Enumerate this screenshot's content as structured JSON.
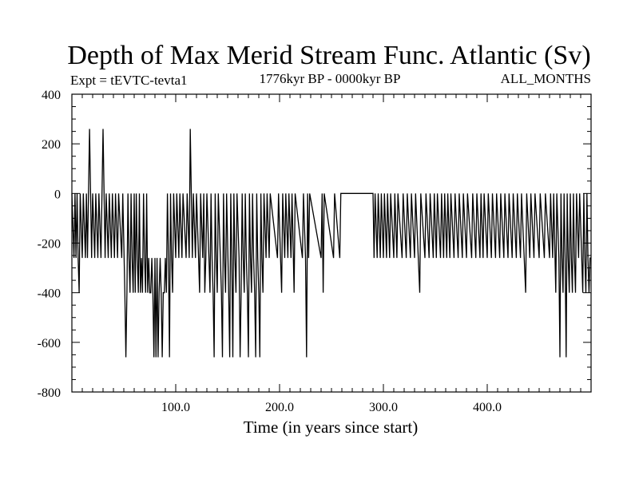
{
  "chart_data": {
    "type": "line",
    "title": "Depth of Max Merid Stream Func. Atlantic (Sv)",
    "experiment": "Expt = tEVTC-tevta1",
    "period": "1776kyr BP - 0000kyr BP",
    "months": "ALL_MONTHS",
    "xlabel": "Time (in years since start)",
    "ylabel": "",
    "xlim": [
      0,
      500
    ],
    "ylim": [
      -800,
      400
    ],
    "x_major_ticks": [
      100,
      200,
      300,
      400
    ],
    "x_tick_labels": [
      "100.0",
      "200.0",
      "300.0",
      "400.0"
    ],
    "y_major_ticks": [
      -800,
      -600,
      -400,
      -200,
      0,
      200,
      400
    ],
    "y_tick_labels": [
      "-800",
      "-600",
      "-400",
      "-200",
      "0",
      "200",
      "400"
    ],
    "grid": false,
    "series": [
      {
        "values": [
          [
            0,
            0
          ],
          [
            2,
            -260
          ],
          [
            3,
            0
          ],
          [
            4,
            -260
          ],
          [
            5,
            0
          ],
          [
            6,
            -260
          ],
          [
            7,
            -400
          ],
          [
            8,
            0
          ],
          [
            10,
            -260
          ],
          [
            11,
            0
          ],
          [
            13,
            -260
          ],
          [
            14,
            0
          ],
          [
            15,
            -260
          ],
          [
            16,
            0
          ],
          [
            17,
            260
          ],
          [
            18,
            0
          ],
          [
            19,
            -260
          ],
          [
            20,
            0
          ],
          [
            22,
            -260
          ],
          [
            23,
            0
          ],
          [
            25,
            -260
          ],
          [
            26,
            0
          ],
          [
            28,
            -260
          ],
          [
            29,
            0
          ],
          [
            30,
            260
          ],
          [
            31,
            0
          ],
          [
            32,
            -260
          ],
          [
            33,
            0
          ],
          [
            35,
            -260
          ],
          [
            36,
            0
          ],
          [
            38,
            -260
          ],
          [
            39,
            0
          ],
          [
            41,
            -260
          ],
          [
            42,
            0
          ],
          [
            44,
            -260
          ],
          [
            45,
            0
          ],
          [
            48,
            -260
          ],
          [
            49,
            0
          ],
          [
            51,
            -400
          ],
          [
            52,
            -660
          ],
          [
            53,
            -400
          ],
          [
            54,
            0
          ],
          [
            55,
            -260
          ],
          [
            56,
            -400
          ],
          [
            57,
            0
          ],
          [
            58,
            -260
          ],
          [
            59,
            -400
          ],
          [
            60,
            0
          ],
          [
            61,
            -400
          ],
          [
            62,
            0
          ],
          [
            63,
            -260
          ],
          [
            64,
            -400
          ],
          [
            65,
            0
          ],
          [
            66,
            -400
          ],
          [
            67,
            -260
          ],
          [
            68,
            -400
          ],
          [
            69,
            0
          ],
          [
            70,
            -260
          ],
          [
            71,
            -400
          ],
          [
            72,
            0
          ],
          [
            73,
            -400
          ],
          [
            74,
            -260
          ],
          [
            75,
            -400
          ],
          [
            76,
            -400
          ],
          [
            77,
            -260
          ],
          [
            78,
            -400
          ],
          [
            79,
            -660
          ],
          [
            80,
            -260
          ],
          [
            81,
            -660
          ],
          [
            82,
            -260
          ],
          [
            83,
            -660
          ],
          [
            84,
            -400
          ],
          [
            85,
            -260
          ],
          [
            86,
            -400
          ],
          [
            87,
            -660
          ],
          [
            88,
            -400
          ],
          [
            89,
            -400
          ],
          [
            90,
            -260
          ],
          [
            91,
            -400
          ],
          [
            92,
            0
          ],
          [
            93,
            -260
          ],
          [
            94,
            -660
          ],
          [
            95,
            0
          ],
          [
            96,
            -260
          ],
          [
            97,
            -400
          ],
          [
            98,
            0
          ],
          [
            100,
            -260
          ],
          [
            101,
            0
          ],
          [
            103,
            -260
          ],
          [
            104,
            0
          ],
          [
            106,
            -260
          ],
          [
            107,
            0
          ],
          [
            110,
            -260
          ],
          [
            111,
            0
          ],
          [
            113,
            -260
          ],
          [
            114,
            260
          ],
          [
            115,
            0
          ],
          [
            116,
            -260
          ],
          [
            117,
            0
          ],
          [
            119,
            -260
          ],
          [
            120,
            0
          ],
          [
            122,
            -260
          ],
          [
            123,
            -400
          ],
          [
            124,
            0
          ],
          [
            126,
            -260
          ],
          [
            127,
            0
          ],
          [
            128,
            -400
          ],
          [
            129,
            -260
          ],
          [
            130,
            0
          ],
          [
            132,
            -260
          ],
          [
            133,
            -400
          ],
          [
            134,
            0
          ],
          [
            135,
            -260
          ],
          [
            136,
            -400
          ],
          [
            137,
            -660
          ],
          [
            138,
            0
          ],
          [
            139,
            -260
          ],
          [
            140,
            -400
          ],
          [
            141,
            0
          ],
          [
            143,
            -260
          ],
          [
            144,
            -400
          ],
          [
            145,
            -660
          ],
          [
            146,
            0
          ],
          [
            147,
            -260
          ],
          [
            148,
            -400
          ],
          [
            149,
            0
          ],
          [
            151,
            -400
          ],
          [
            152,
            -660
          ],
          [
            153,
            0
          ],
          [
            154,
            -260
          ],
          [
            155,
            -660
          ],
          [
            156,
            0
          ],
          [
            157,
            -260
          ],
          [
            158,
            -400
          ],
          [
            159,
            0
          ],
          [
            161,
            -260
          ],
          [
            162,
            -660
          ],
          [
            163,
            -400
          ],
          [
            164,
            0
          ],
          [
            165,
            -260
          ],
          [
            166,
            -400
          ],
          [
            167,
            0
          ],
          [
            168,
            -260
          ],
          [
            169,
            -400
          ],
          [
            170,
            -660
          ],
          [
            171,
            0
          ],
          [
            172,
            -260
          ],
          [
            173,
            -400
          ],
          [
            174,
            0
          ],
          [
            175,
            -260
          ],
          [
            176,
            -400
          ],
          [
            177,
            -660
          ],
          [
            178,
            0
          ],
          [
            179,
            -260
          ],
          [
            180,
            -400
          ],
          [
            181,
            -660
          ],
          [
            182,
            0
          ],
          [
            183,
            -260
          ],
          [
            184,
            -400
          ],
          [
            185,
            0
          ],
          [
            187,
            -260
          ],
          [
            188,
            0
          ],
          [
            190,
            -260
          ],
          [
            191,
            0
          ],
          [
            198,
            -260
          ],
          [
            199,
            0
          ],
          [
            202,
            -400
          ],
          [
            203,
            0
          ],
          [
            205,
            -260
          ],
          [
            206,
            0
          ],
          [
            208,
            -260
          ],
          [
            209,
            0
          ],
          [
            211,
            -260
          ],
          [
            212,
            0
          ],
          [
            214,
            -400
          ],
          [
            215,
            0
          ],
          [
            222,
            -260
          ],
          [
            223,
            0
          ],
          [
            225,
            -260
          ],
          [
            226,
            -660
          ],
          [
            227,
            0
          ],
          [
            228,
            -260
          ],
          [
            229,
            0
          ],
          [
            240,
            -260
          ],
          [
            241,
            0
          ],
          [
            242,
            -400
          ],
          [
            243,
            0
          ],
          [
            252,
            -260
          ],
          [
            253,
            0
          ],
          [
            258,
            -260
          ],
          [
            259,
            0
          ],
          [
            290,
            0
          ],
          [
            291,
            -260
          ],
          [
            292,
            0
          ],
          [
            294,
            -260
          ],
          [
            295,
            0
          ],
          [
            297,
            -260
          ],
          [
            298,
            0
          ],
          [
            300,
            -260
          ],
          [
            301,
            0
          ],
          [
            303,
            -260
          ],
          [
            304,
            0
          ],
          [
            306,
            -260
          ],
          [
            307,
            0
          ],
          [
            310,
            -260
          ],
          [
            311,
            0
          ],
          [
            313,
            -260
          ],
          [
            314,
            0
          ],
          [
            318,
            -260
          ],
          [
            319,
            0
          ],
          [
            322,
            -260
          ],
          [
            323,
            0
          ],
          [
            326,
            -260
          ],
          [
            327,
            0
          ],
          [
            330,
            -260
          ],
          [
            331,
            0
          ],
          [
            335,
            -400
          ],
          [
            336,
            0
          ],
          [
            340,
            -260
          ],
          [
            341,
            0
          ],
          [
            344,
            -260
          ],
          [
            345,
            0
          ],
          [
            348,
            -260
          ],
          [
            349,
            0
          ],
          [
            351,
            -260
          ],
          [
            352,
            0
          ],
          [
            355,
            -260
          ],
          [
            356,
            0
          ],
          [
            358,
            -260
          ],
          [
            359,
            0
          ],
          [
            361,
            -260
          ],
          [
            362,
            0
          ],
          [
            364,
            -260
          ],
          [
            365,
            0
          ],
          [
            368,
            -260
          ],
          [
            369,
            0
          ],
          [
            372,
            -260
          ],
          [
            373,
            0
          ],
          [
            376,
            -260
          ],
          [
            377,
            0
          ],
          [
            380,
            -260
          ],
          [
            381,
            0
          ],
          [
            385,
            -260
          ],
          [
            386,
            0
          ],
          [
            389,
            -260
          ],
          [
            390,
            0
          ],
          [
            393,
            -260
          ],
          [
            394,
            0
          ],
          [
            396,
            -260
          ],
          [
            397,
            0
          ],
          [
            400,
            -260
          ],
          [
            401,
            0
          ],
          [
            404,
            -260
          ],
          [
            405,
            0
          ],
          [
            408,
            -260
          ],
          [
            409,
            0
          ],
          [
            412,
            -260
          ],
          [
            413,
            0
          ],
          [
            416,
            -260
          ],
          [
            417,
            0
          ],
          [
            420,
            -260
          ],
          [
            421,
            0
          ],
          [
            424,
            -260
          ],
          [
            425,
            0
          ],
          [
            428,
            -260
          ],
          [
            429,
            0
          ],
          [
            432,
            -260
          ],
          [
            433,
            0
          ],
          [
            437,
            -400
          ],
          [
            438,
            0
          ],
          [
            441,
            -260
          ],
          [
            442,
            0
          ],
          [
            445,
            -260
          ],
          [
            446,
            0
          ],
          [
            450,
            -260
          ],
          [
            451,
            0
          ],
          [
            455,
            -260
          ],
          [
            456,
            0
          ],
          [
            460,
            -260
          ],
          [
            461,
            0
          ],
          [
            463,
            -260
          ],
          [
            464,
            0
          ],
          [
            466,
            -400
          ],
          [
            467,
            0
          ],
          [
            469,
            -260
          ],
          [
            470,
            -660
          ],
          [
            471,
            0
          ],
          [
            472,
            -260
          ],
          [
            473,
            -400
          ],
          [
            474,
            0
          ],
          [
            475,
            -260
          ],
          [
            476,
            -660
          ],
          [
            477,
            0
          ],
          [
            478,
            -260
          ],
          [
            479,
            -400
          ],
          [
            480,
            0
          ],
          [
            481,
            -260
          ],
          [
            482,
            -400
          ],
          [
            483,
            0
          ],
          [
            484,
            -260
          ],
          [
            485,
            -400
          ],
          [
            486,
            0
          ],
          [
            488,
            -260
          ],
          [
            489,
            0
          ],
          [
            491,
            -260
          ],
          [
            492,
            -400
          ],
          [
            493,
            0
          ],
          [
            494,
            -260
          ],
          [
            495,
            -400
          ],
          [
            496,
            0
          ],
          [
            497,
            -260
          ],
          [
            498,
            -400
          ],
          [
            499,
            -260
          ],
          [
            500,
            -260
          ]
        ]
      }
    ]
  }
}
